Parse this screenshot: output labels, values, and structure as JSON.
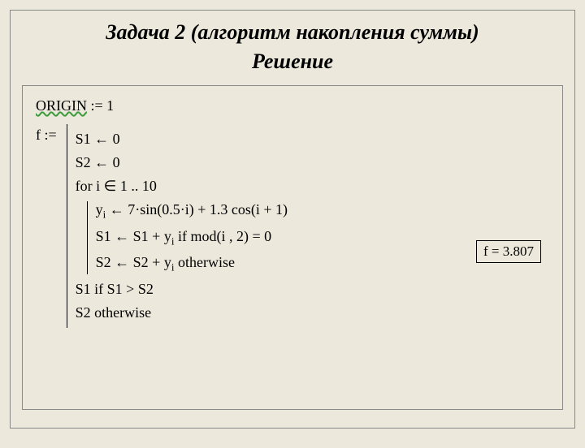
{
  "title": "Задача 2 (алгоритм накопления суммы)",
  "subtitle": "Решение",
  "code": {
    "origin": "ORIGIN := 1",
    "origin_word": "ORIGIN",
    "origin_rest": " := 1",
    "fdef": "f  := ",
    "l1": "S1  ←  0",
    "l2": "S2  ←  0",
    "l3": "for   i ∈ 1 .. 10",
    "l4_a": "y",
    "l4_b": "i",
    "l4_c": "  ←  7·sin(0.5·i)  +  1.3 cos(i + 1)",
    "l5_a": "S1  ←  S1 + y",
    "l5_b": "i",
    "l5_c": "   if   mod(i , 2) = 0",
    "l6_a": "S2  ←  S2 + y",
    "l6_b": "i",
    "l6_c": "   otherwise",
    "l7": "S1   if   S1 > S2",
    "l8": "S2   otherwise"
  },
  "result": "f  =  3.807",
  "style": {
    "bg": "#ece9dc",
    "border": "#888888",
    "wave_color": "#3b9b3b",
    "title_fontsize": 26,
    "code_fontsize": 18
  }
}
